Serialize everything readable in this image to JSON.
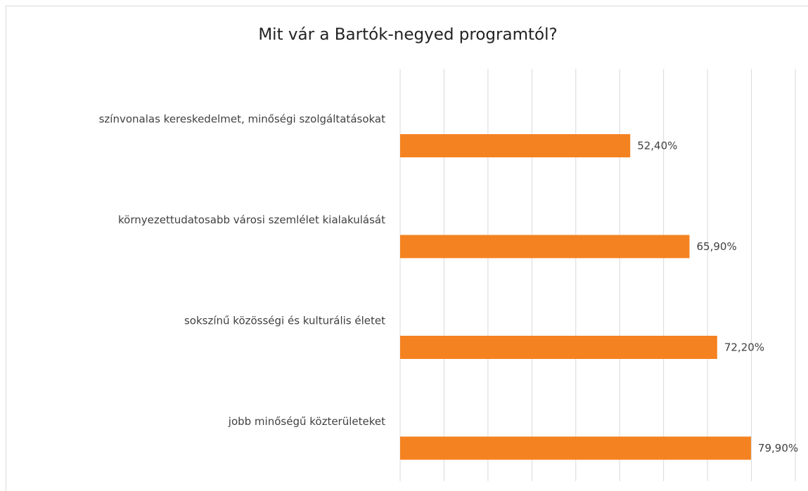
{
  "chart_data": {
    "type": "barh",
    "title": "Mit vár a Bartók-negyed programtól?",
    "categories": [
      "színvonalas kereskedelmet, minőségi szolgáltatásokat",
      "környezettudatosabb városi szemlélet kialakulását",
      "sokszínű közösségi és kulturális életet",
      "jobb minőségű közterületeket"
    ],
    "values": [
      52.4,
      65.9,
      72.2,
      79.9
    ],
    "value_labels": [
      "52,40%",
      "65,90%",
      "72,20%",
      "79,90%"
    ],
    "color": "#f58220",
    "xlim": [
      0,
      90
    ],
    "xticks": [
      0,
      10,
      20,
      30,
      40,
      50,
      60,
      70,
      80,
      90
    ],
    "grid": true
  }
}
